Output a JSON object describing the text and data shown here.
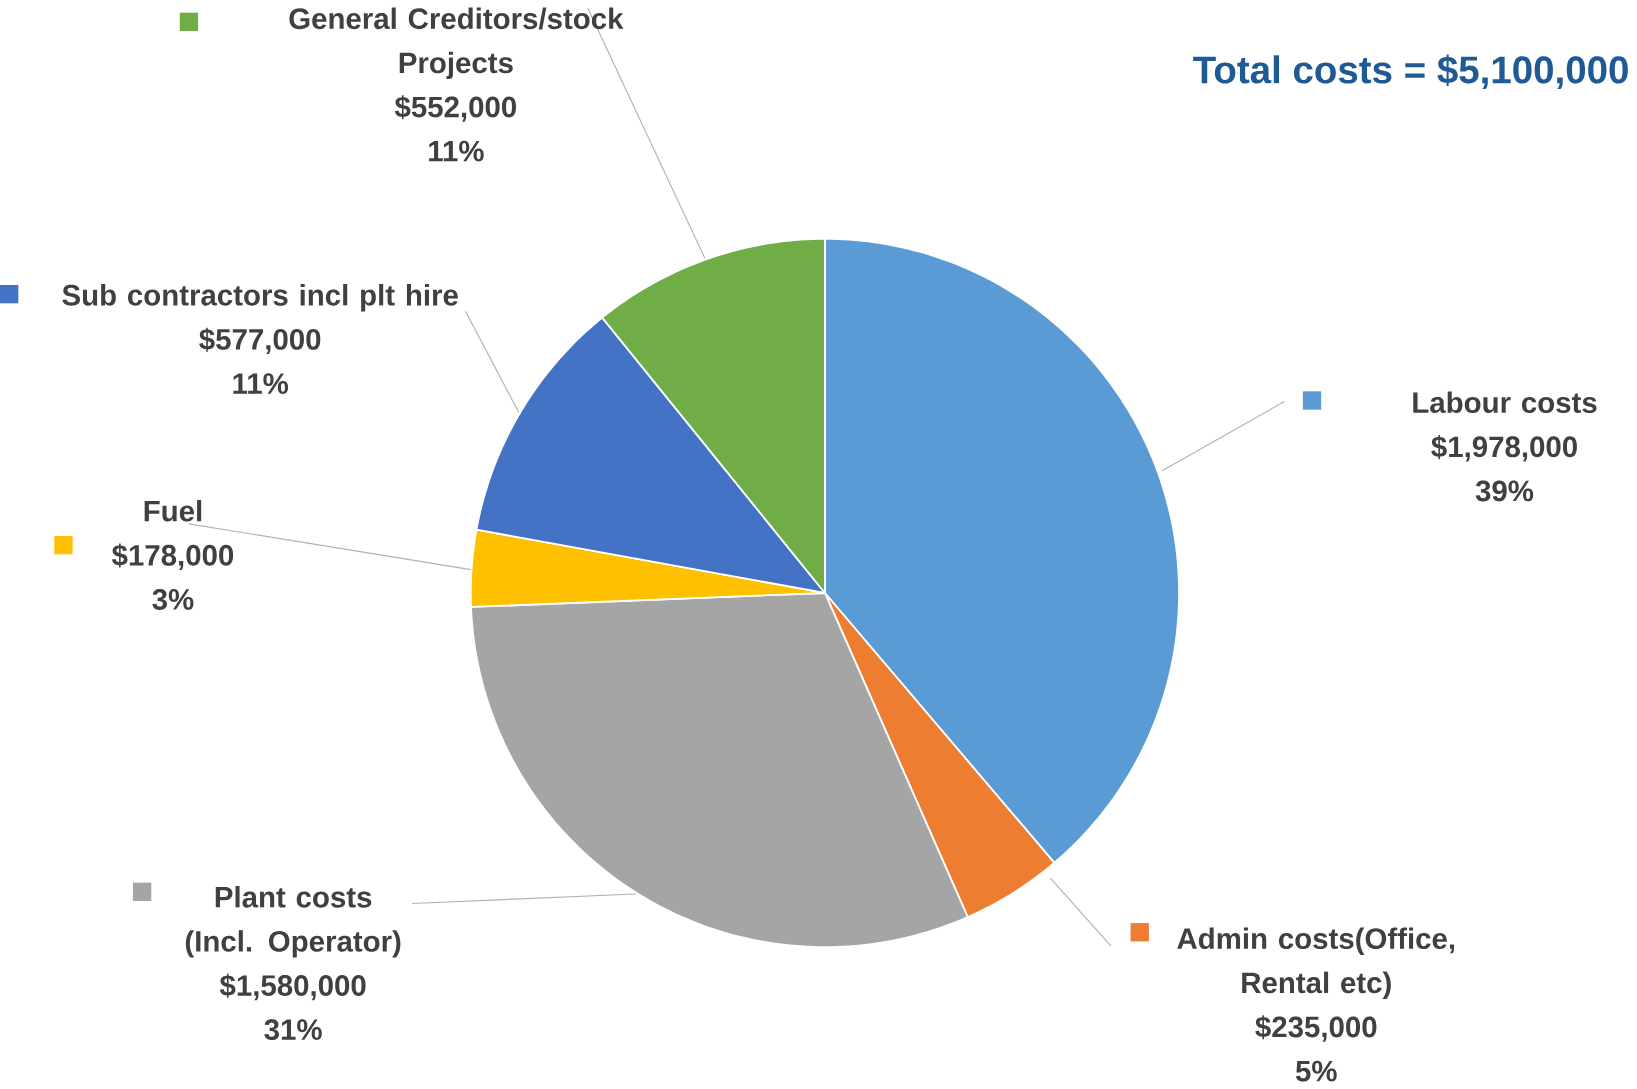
{
  "chart_data": {
    "type": "pie",
    "title": "Total costs = $5,100,000",
    "categories": [
      "Labour costs",
      "Admin costs(Office, Rental etc)",
      "Plant costs (Incl. Operator)",
      "Fuel",
      "Sub contractors incl plt hire",
      "General Creditors/stock Projects"
    ],
    "values": [
      1978000,
      235000,
      1580000,
      178000,
      577000,
      552000
    ],
    "legend": "bottom left",
    "colors": [
      "#5b9bd5",
      "#ed7d31",
      "#a5a5a5",
      "#ffc000",
      "#4472c4",
      "#70ad47"
    ],
    "value_labels": [
      "$1,978,000",
      "$235,000",
      "$1,580,000",
      "$178,000",
      "$577,000",
      "$552,000"
    ],
    "annotations": [
      {
        "text": "39%",
        "x": "Labour costs"
      },
      {
        "text": "5%",
        "x": "Admin costs(Office, Rental etc)"
      },
      {
        "text": "31%",
        "x": "Plant costs (Incl. Operator)"
      },
      {
        "text": "3%",
        "x": "Fuel"
      },
      {
        "text": "11%",
        "x": "Sub contractors incl plt hire"
      },
      {
        "text": "11%",
        "x": "General Creditors/stock Projects"
      }
    ]
  }
}
